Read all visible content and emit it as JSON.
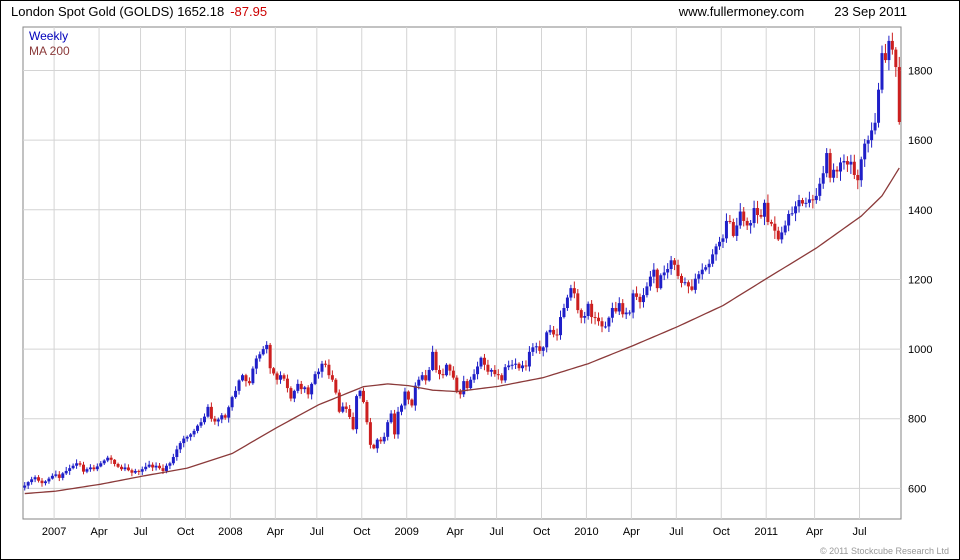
{
  "header": {
    "title": "London Spot Gold (GOLDS) 1652.18",
    "change": "-87.95",
    "site": "www.fullermoney.com",
    "date": "23 Sep 2011"
  },
  "legend": {
    "weekly": "Weekly",
    "ma": "MA 200"
  },
  "footer": {
    "copyright": "© 2011 Stockcube Research Ltd"
  },
  "colors": {
    "up": "#1f1fc8",
    "down": "#cc1f1f",
    "ma": "#8b3a3a",
    "grid": "#d4d4d4",
    "plot_border": "#858585",
    "change_text": "#cc0000",
    "legend_weekly": "#0000bb",
    "legend_ma": "#8b3a3a",
    "axis_text": "#000000",
    "copyright_text": "#999999"
  },
  "chart_data": {
    "type": "candlestick",
    "title": "London Spot Gold (GOLDS)",
    "interval": "weekly",
    "last_close": 1652.18,
    "change": -87.95,
    "date": "23 Sep 2011",
    "ylim": [
      512,
      1925
    ],
    "yticks": [
      600,
      800,
      1000,
      1200,
      1400,
      1600,
      1800
    ],
    "xticks": [
      {
        "label": "2007",
        "week": 9
      },
      {
        "label": "Apr",
        "week": 22
      },
      {
        "label": "Jul",
        "week": 34
      },
      {
        "label": "Oct",
        "week": 47
      },
      {
        "label": "2008",
        "week": 60
      },
      {
        "label": "Apr",
        "week": 73
      },
      {
        "label": "Jul",
        "week": 85
      },
      {
        "label": "Oct",
        "week": 98
      },
      {
        "label": "2009",
        "week": 111
      },
      {
        "label": "Apr",
        "week": 125
      },
      {
        "label": "Jul",
        "week": 137
      },
      {
        "label": "Oct",
        "week": 150
      },
      {
        "label": "2010",
        "week": 163
      },
      {
        "label": "Apr",
        "week": 176
      },
      {
        "label": "Jul",
        "week": 189
      },
      {
        "label": "Oct",
        "week": 202
      },
      {
        "label": "2011",
        "week": 215
      },
      {
        "label": "Apr",
        "week": 229
      },
      {
        "label": "Jul",
        "week": 242
      }
    ],
    "weekly_closes": [
      608,
      618,
      626,
      632,
      622,
      615,
      620,
      628,
      636,
      640,
      630,
      643,
      650,
      658,
      665,
      672,
      668,
      648,
      655,
      660,
      655,
      663,
      672,
      680,
      688,
      682,
      670,
      662,
      655,
      660,
      652,
      645,
      650,
      648,
      655,
      662,
      668,
      660,
      665,
      658,
      650,
      665,
      672,
      690,
      712,
      730,
      743,
      748,
      755,
      765,
      780,
      790,
      806,
      834,
      800,
      792,
      798,
      810,
      803,
      833,
      862,
      880,
      910,
      925,
      908,
      902,
      944,
      973,
      985,
      1000,
      1012,
      945,
      930,
      912,
      925,
      915,
      888,
      858,
      880,
      900,
      885,
      890,
      870,
      900,
      928,
      935,
      958,
      955,
      925,
      912,
      875,
      820,
      835,
      828,
      805,
      770,
      865,
      880,
      848,
      790,
      725,
      715,
      740,
      735,
      748,
      790,
      815,
      755,
      820,
      838,
      878,
      855,
      838,
      895,
      912,
      925,
      910,
      940,
      992,
      940,
      928,
      925,
      955,
      938,
      918,
      880,
      870,
      908,
      888,
      912,
      928,
      950,
      975,
      955,
      935,
      940,
      928,
      925,
      910,
      948,
      953,
      955,
      958,
      945,
      953,
      950,
      992,
      1005,
      1008,
      995,
      1005,
      1048,
      1055,
      1042,
      1040,
      1092,
      1118,
      1148,
      1175,
      1160,
      1112,
      1090,
      1095,
      1130,
      1092,
      1090,
      1080,
      1065,
      1065,
      1090,
      1118,
      1108,
      1132,
      1100,
      1105,
      1105,
      1160,
      1150,
      1135,
      1155,
      1180,
      1208,
      1228,
      1175,
      1212,
      1220,
      1230,
      1255,
      1242,
      1210,
      1190,
      1192,
      1180,
      1170,
      1202,
      1215,
      1228,
      1235,
      1245,
      1272,
      1295,
      1308,
      1318,
      1368,
      1365,
      1325,
      1355,
      1395,
      1368,
      1355,
      1362,
      1405,
      1385,
      1380,
      1420,
      1365,
      1360,
      1340,
      1315,
      1335,
      1355,
      1388,
      1390,
      1410,
      1428,
      1418,
      1420,
      1430,
      1428,
      1440,
      1475,
      1505,
      1563,
      1492,
      1515,
      1510,
      1536,
      1540,
      1530,
      1538,
      1500,
      1485,
      1545,
      1590,
      1600,
      1628,
      1650,
      1745,
      1850,
      1830,
      1885,
      1860,
      1810,
      1652.18
    ],
    "ma200_anchors": [
      [
        0,
        585
      ],
      [
        9,
        592
      ],
      [
        22,
        612
      ],
      [
        34,
        635
      ],
      [
        47,
        658
      ],
      [
        60,
        700
      ],
      [
        73,
        775
      ],
      [
        85,
        840
      ],
      [
        98,
        892
      ],
      [
        105,
        900
      ],
      [
        111,
        895
      ],
      [
        118,
        882
      ],
      [
        125,
        878
      ],
      [
        137,
        893
      ],
      [
        150,
        918
      ],
      [
        163,
        958
      ],
      [
        176,
        1010
      ],
      [
        189,
        1065
      ],
      [
        202,
        1125
      ],
      [
        215,
        1205
      ],
      [
        229,
        1290
      ],
      [
        242,
        1382
      ],
      [
        248,
        1440
      ],
      [
        253,
        1520
      ]
    ]
  }
}
